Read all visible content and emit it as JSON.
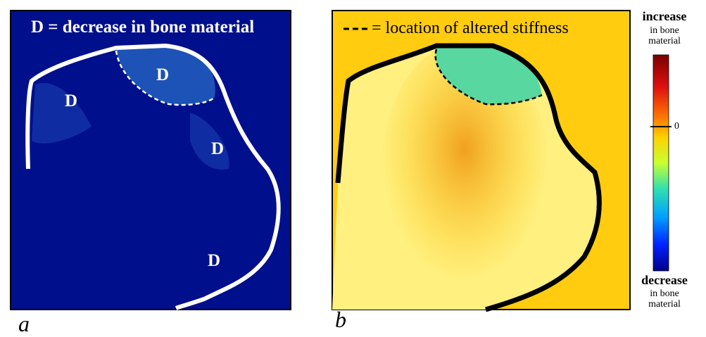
{
  "panel_a": {
    "label": "a",
    "legend": "D  =  decrease in bone material",
    "markers": [
      "D",
      "D",
      "D",
      "D"
    ]
  },
  "panel_b": {
    "label": "b",
    "legend": "= location of altered stiffness",
    "colorbar": {
      "top_label": "increase",
      "top_sublabel": "in bone material",
      "zero_label": "0",
      "bottom_label": "decrease",
      "bottom_sublabel": "in bone material"
    }
  }
}
